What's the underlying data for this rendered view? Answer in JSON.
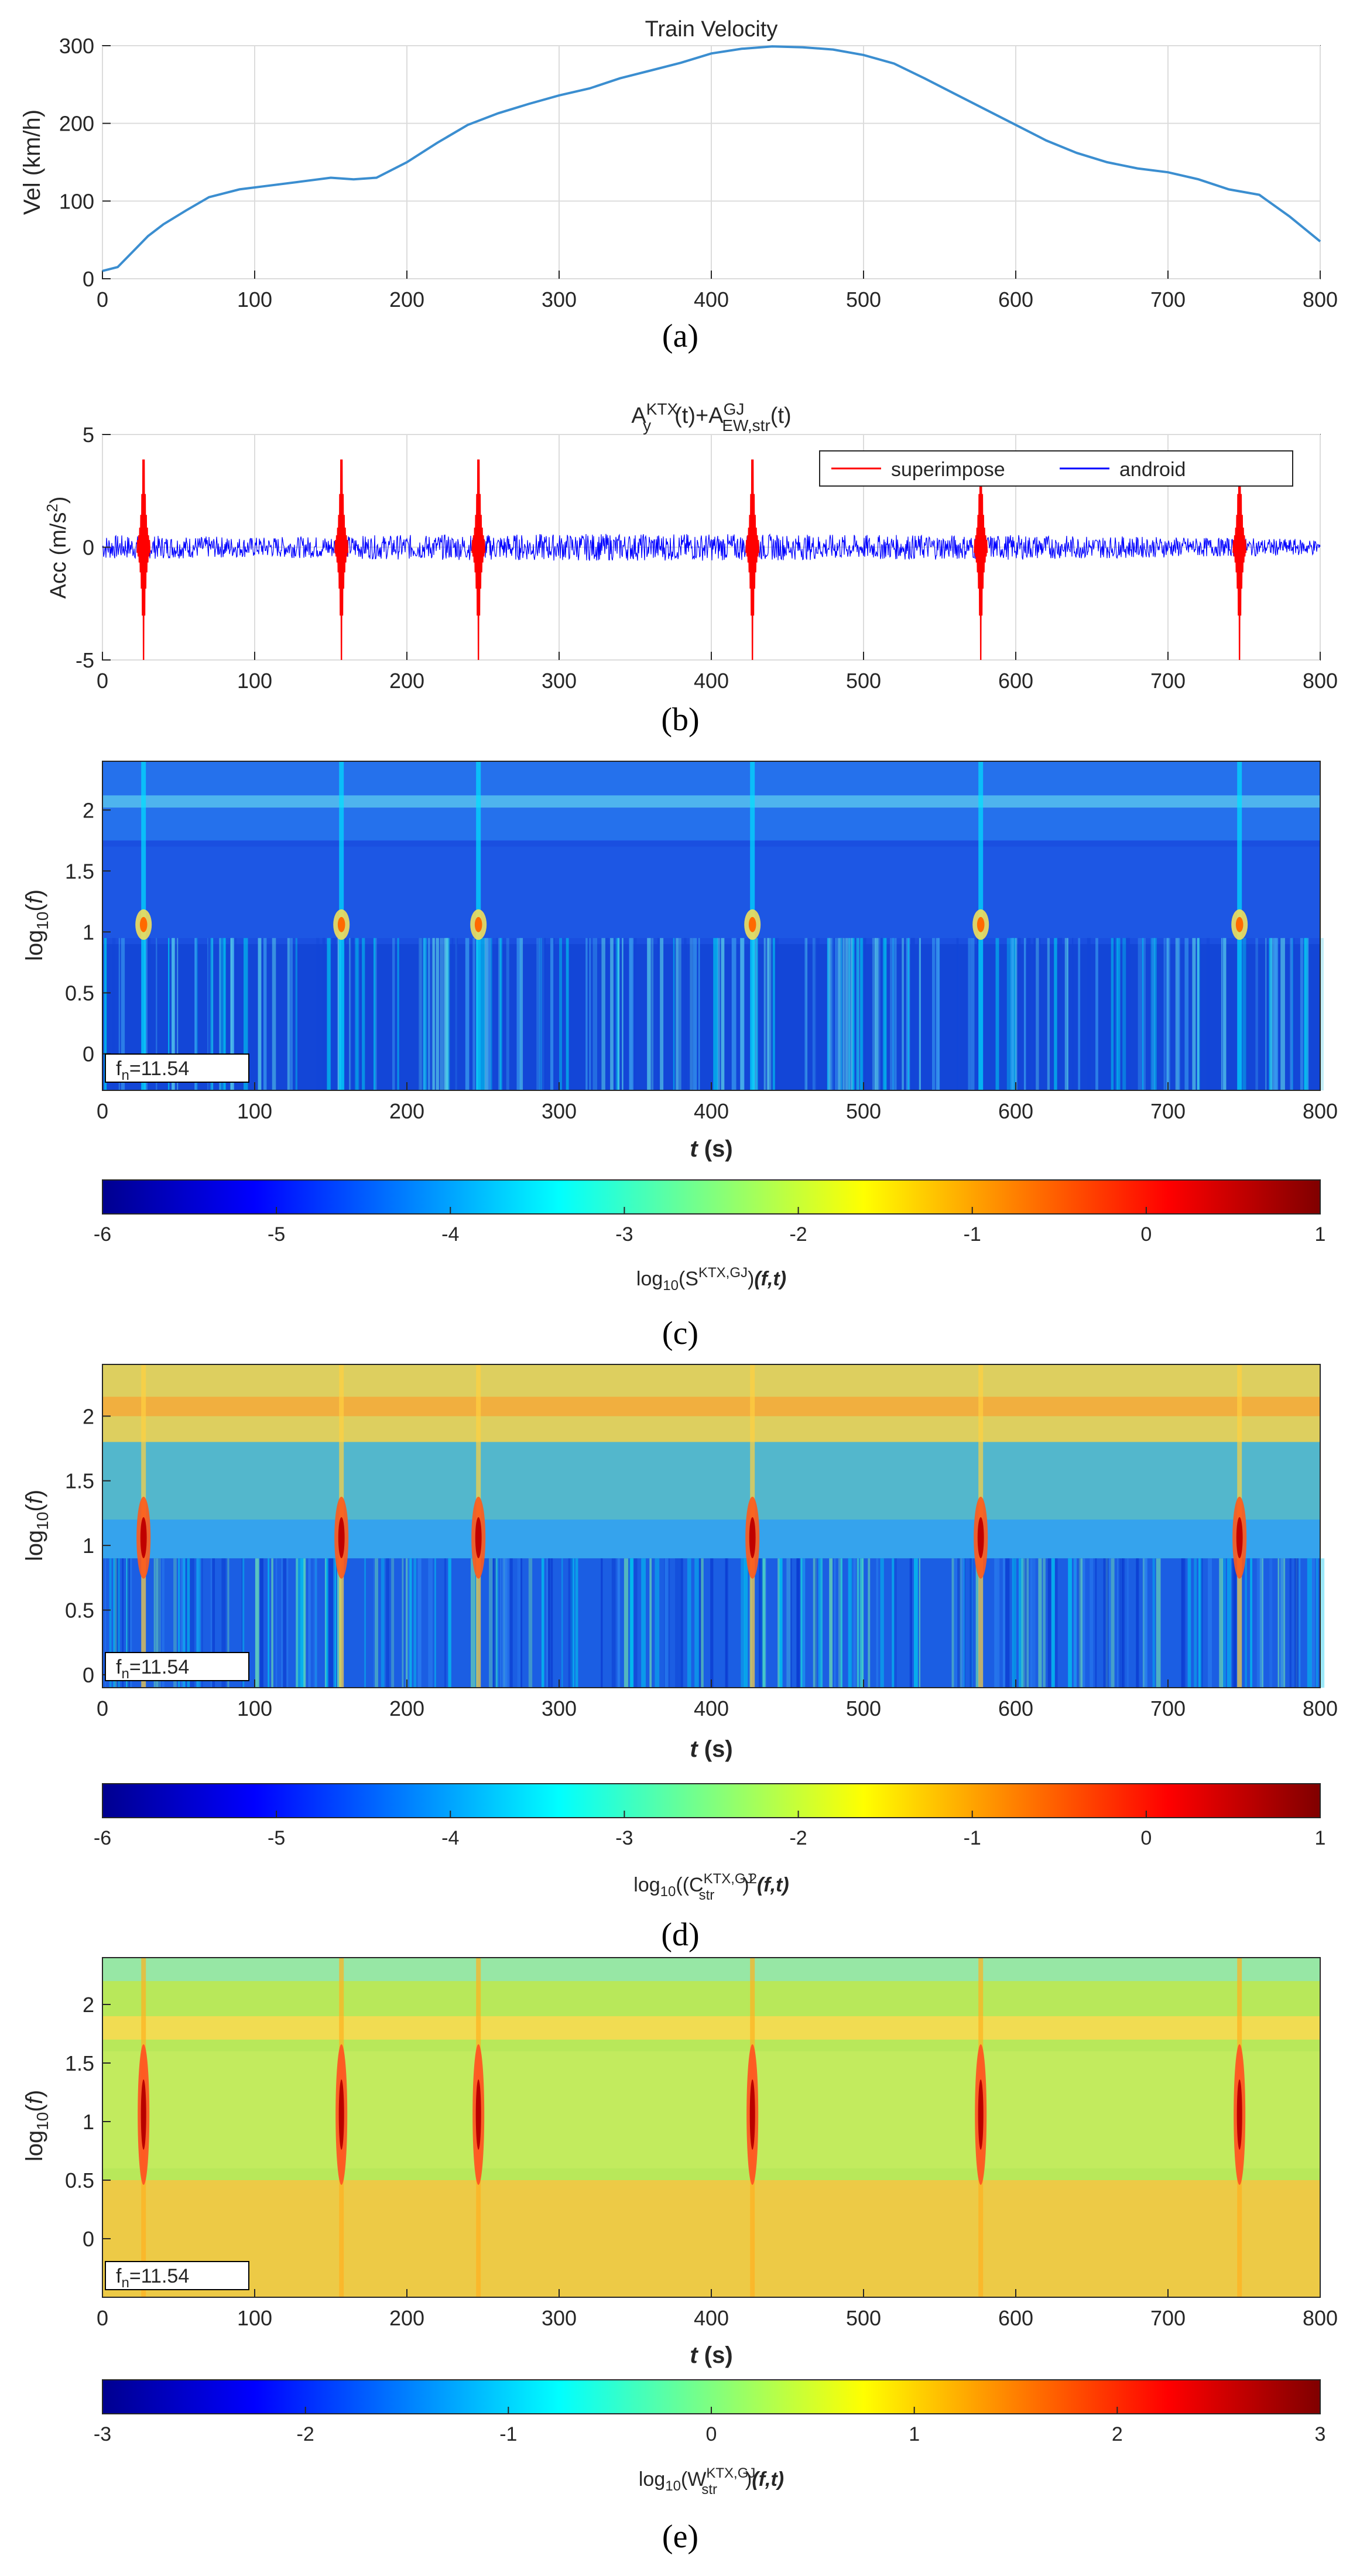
{
  "chart_data": [
    {
      "panel": "(a)",
      "type": "line",
      "title": "Train Velocity",
      "xlabel": "",
      "ylabel": "Vel (km/h)",
      "xlim": [
        0,
        800
      ],
      "ylim": [
        0,
        300
      ],
      "xticks": [
        0,
        100,
        200,
        300,
        400,
        500,
        600,
        700,
        800
      ],
      "yticks": [
        0,
        100,
        200,
        300
      ],
      "grid": true,
      "colors": {
        "line": "#3b8ed0"
      },
      "series": [
        {
          "x": [
            0,
            10,
            20,
            30,
            40,
            55,
            70,
            90,
            110,
            130,
            150,
            165,
            180,
            200,
            220,
            240,
            260,
            280,
            300,
            320,
            340,
            360,
            380,
            400,
            420,
            440,
            460,
            480,
            500,
            520,
            540,
            560,
            580,
            600,
            620,
            640,
            660,
            680,
            700,
            720,
            740,
            760,
            780,
            800
          ],
          "y": [
            10,
            15,
            35,
            55,
            70,
            88,
            105,
            115,
            120,
            125,
            130,
            128,
            130,
            150,
            175,
            198,
            213,
            225,
            236,
            245,
            258,
            268,
            278,
            290,
            296,
            299,
            298,
            295,
            288,
            277,
            258,
            238,
            218,
            198,
            178,
            162,
            150,
            142,
            137,
            128,
            115,
            108,
            80,
            48
          ]
        }
      ]
    },
    {
      "panel": "(b)",
      "type": "line",
      "title": "A_y^KTX(t)+A_EW,str^GJ(t)",
      "xlabel": "",
      "ylabel": "Acc (m/s2)",
      "xlim": [
        0,
        800
      ],
      "ylim": [
        -5,
        5
      ],
      "xticks": [
        0,
        100,
        200,
        300,
        400,
        500,
        600,
        700,
        800
      ],
      "yticks": [
        -5,
        0,
        5
      ],
      "grid": true,
      "legend": {
        "placement": "top-right",
        "entries": [
          "superimpose",
          "android"
        ]
      },
      "colors": {
        "superimpose": "#ff0000",
        "android": "#0000ff"
      },
      "series": [
        {
          "name": "superimpose",
          "spike_times": [
            27,
            157,
            247,
            427,
            577,
            747
          ],
          "amplitude_range": [
            -5,
            5
          ]
        },
        {
          "name": "android",
          "x": [
            0,
            100,
            200,
            300,
            400,
            500,
            600,
            700,
            800
          ],
          "envelope": [
            0.55,
            0.45,
            0.55,
            0.6,
            0.6,
            0.55,
            0.55,
            0.45,
            0.35
          ]
        }
      ]
    },
    {
      "panel": "(c)",
      "type": "heatmap",
      "xlabel": "t (s)",
      "ylabel": "log10(f)",
      "xlim": [
        0,
        800
      ],
      "ylim": [
        -0.3,
        2.4
      ],
      "xticks": [
        0,
        100,
        200,
        300,
        400,
        500,
        600,
        700,
        800
      ],
      "yticks": [
        0,
        0.5,
        1,
        1.5,
        2
      ],
      "annotation": "fn=11.54",
      "colorbar": {
        "label": "log10(S^KTX,GJ(f,t))",
        "range": [
          -6,
          1
        ],
        "ticks": [
          -6,
          -5,
          -4,
          -3,
          -2,
          -1,
          0,
          1
        ]
      },
      "impact_times": [
        27,
        157,
        247,
        427,
        577,
        747
      ],
      "natural_freq_log10": 1.06
    },
    {
      "panel": "(d)",
      "type": "heatmap",
      "xlabel": "t (s)",
      "ylabel": "log10(f)",
      "xlim": [
        0,
        800
      ],
      "ylim": [
        -0.1,
        2.4
      ],
      "xticks": [
        0,
        100,
        200,
        300,
        400,
        500,
        600,
        700,
        800
      ],
      "yticks": [
        0,
        0.5,
        1,
        1.5,
        2
      ],
      "annotation": "fn=11.54",
      "colorbar": {
        "label": "log10((C_str^KTX,GJ)^2(f,t))",
        "range": [
          -6,
          1
        ],
        "ticks": [
          -6,
          -5,
          -4,
          -3,
          -2,
          -1,
          0,
          1
        ]
      },
      "impact_times": [
        27,
        157,
        247,
        427,
        577,
        747
      ],
      "natural_freq_log10": 1.06
    },
    {
      "panel": "(e)",
      "type": "heatmap",
      "xlabel": "t (s)",
      "ylabel": "log10(f)",
      "xlim": [
        0,
        800
      ],
      "ylim": [
        -0.5,
        2.4
      ],
      "xticks": [
        0,
        100,
        200,
        300,
        400,
        500,
        600,
        700,
        800
      ],
      "yticks": [
        0,
        0.5,
        1,
        1.5,
        2
      ],
      "annotation": "fn=11.54",
      "colorbar": {
        "label": "log10(W_str^KTX,GJ(f,t))",
        "range": [
          -3,
          3
        ],
        "ticks": [
          -3,
          -2,
          -1,
          0,
          1,
          2,
          3
        ]
      },
      "impact_times": [
        27,
        157,
        247,
        427,
        577,
        747
      ],
      "natural_freq_log10": 1.06
    }
  ],
  "labels": {
    "a": "(a)",
    "b": "(b)",
    "c": "(c)",
    "d": "(d)",
    "e": "(e)",
    "fn_prefix": "f",
    "fn_sub": "n",
    "fn_value": "=11.54",
    "vel_title": "Train Velocity",
    "vel_ylabel": "Vel (km/h)",
    "acc_ylabel": "Acc (m/s",
    "acc_sup": "2",
    "acc_close": ")",
    "acc_title_A": "A",
    "acc_title_y": "y",
    "acc_title_KTX": "KTX",
    "acc_title_t": "(t)+A",
    "acc_title_EW": "EW,str",
    "acc_title_GJ": "GJ",
    "acc_title_t2": "(t)",
    "legend_super": "superimpose",
    "legend_android": "android",
    "t_label_t": "t",
    "t_label_s": " (s)",
    "log_label_a": "log",
    "log_label_sub": "10",
    "log_label_b": "(",
    "log_label_f": "f",
    "log_label_c": ")",
    "cb_c_pre": "log",
    "cb_c_sub": "10",
    "cb_c_mid": "(S",
    "cb_c_sup": "KTX,GJ",
    "cb_c_post": ")",
    "cb_d_pre": "log",
    "cb_d_sub": "10",
    "cb_d_mid": "((C",
    "cb_d_sup": "KTX,GJ",
    "cb_d_sub2": "str",
    "cb_d_post": ")",
    "cb_d_sq": "2",
    "cb_e_pre": "log",
    "cb_e_sub": "10",
    "cb_e_mid": "(W",
    "cb_e_sup": "KTX,GJ",
    "cb_e_sub2": "str",
    "cb_e_post": ")",
    "ft": "(f,t)"
  }
}
